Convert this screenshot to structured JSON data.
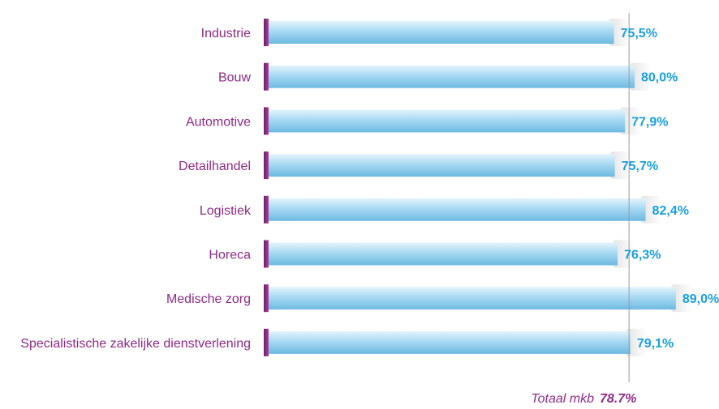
{
  "chart_data": {
    "type": "bar",
    "orientation": "horizontal",
    "categories": [
      "Industrie",
      "Bouw",
      "Automotive",
      "Detailhandel",
      "Logistiek",
      "Horeca",
      "Medische zorg",
      "Specialistische zakelijke dienstverlening"
    ],
    "values": [
      75.5,
      80.0,
      77.9,
      75.7,
      82.4,
      76.3,
      89.0,
      79.1
    ],
    "value_labels": [
      "75,5%",
      "80,0%",
      "77,9%",
      "75,7%",
      "82,4%",
      "76,3%",
      "89,0%",
      "79,1%"
    ],
    "xlim": [
      0,
      100
    ],
    "reference_line": {
      "value": 78.7,
      "label": "Totaal mkb",
      "value_label": "78.7%"
    },
    "colors": {
      "bar_top": "#d6effb",
      "bar_bottom": "#7cc4e8",
      "bar_cap": "#8e2a86",
      "category_text": "#8e2a86",
      "value_text": "#1aa0e0",
      "reference_line": "#999999"
    },
    "grid": false,
    "legend": "none"
  }
}
